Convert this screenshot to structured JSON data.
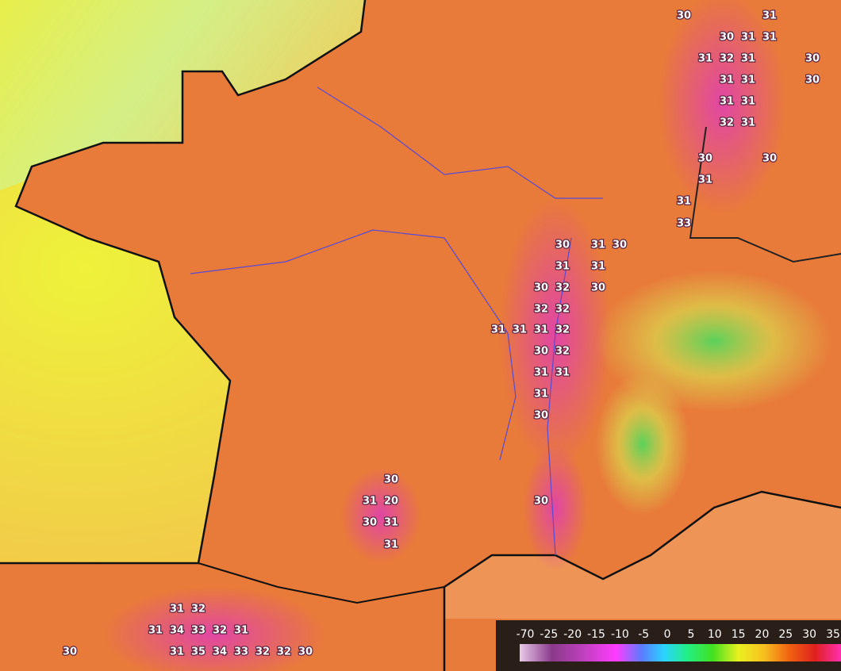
{
  "map": {
    "temperature_labels": [
      "30",
      "31",
      "30",
      "31",
      "31",
      "31",
      "32",
      "31",
      "30",
      "31",
      "31",
      "30",
      "31",
      "31",
      "32",
      "31",
      "30",
      "30",
      "31",
      "31",
      "33",
      "30",
      "31",
      "30",
      "31",
      "31",
      "30",
      "32",
      "30",
      "32",
      "32",
      "31",
      "31",
      "31",
      "32",
      "30",
      "32",
      "31",
      "31",
      "31",
      "30",
      "30",
      "30",
      "31",
      "20",
      "30",
      "31",
      "31",
      "31",
      "32",
      "31",
      "34",
      "33",
      "32",
      "31",
      "30",
      "31",
      "35",
      "34",
      "33",
      "32",
      "32",
      "30"
    ]
  },
  "legend": {
    "labels": [
      "-70",
      "-25",
      "-20",
      "-15",
      "-10",
      "-5",
      "0",
      "5",
      "10",
      "15",
      "20",
      "25",
      "30",
      "35"
    ]
  }
}
